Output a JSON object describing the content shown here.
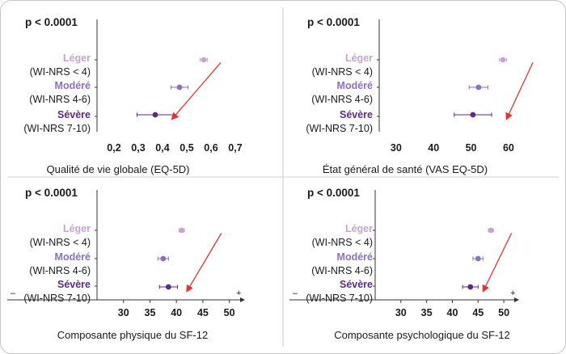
{
  "chart_data": [
    {
      "type": "scatter",
      "style": "forest-plot",
      "pvalue": "p < 0.0001",
      "xlabel": "Qualité de vie globale (EQ-5D)",
      "xlim": [
        0.13,
        0.71
      ],
      "ticks": [
        0.2,
        0.3,
        0.4,
        0.5,
        0.6,
        0.7
      ],
      "tick_labels": [
        "0,2",
        "0,3",
        "0,4",
        "0,5",
        "0,6",
        "0,7"
      ],
      "axis_style": "bare",
      "direction_markers": null,
      "arrow": {
        "from": [
          0.64,
          1.9
        ],
        "to": [
          0.44,
          -0.15
        ]
      },
      "points": [
        {
          "group": 0,
          "value": 0.57,
          "low": 0.555,
          "high": 0.585
        },
        {
          "group": 1,
          "value": 0.47,
          "low": 0.435,
          "high": 0.505
        },
        {
          "group": 2,
          "value": 0.37,
          "low": 0.295,
          "high": 0.445
        }
      ]
    },
    {
      "type": "scatter",
      "style": "forest-plot",
      "pvalue": "p < 0.0001",
      "xlabel": "État général de santé (VAS EQ-5D)",
      "xlim": [
        25.5,
        68
      ],
      "ticks": [
        30,
        40,
        50,
        60
      ],
      "tick_labels": [
        "30",
        "40",
        "50",
        "60"
      ],
      "axis_style": "bare",
      "direction_markers": null,
      "arrow": {
        "from": [
          66.5,
          1.9
        ],
        "to": [
          59.5,
          -0.15
        ]
      },
      "points": [
        {
          "group": 0,
          "value": 58.5,
          "low": 57.5,
          "high": 59.5
        },
        {
          "group": 1,
          "value": 52,
          "low": 49.5,
          "high": 54.5
        },
        {
          "group": 2,
          "value": 50.5,
          "low": 45.5,
          "high": 55.5
        }
      ]
    },
    {
      "type": "scatter",
      "style": "forest-plot",
      "pvalue": "p < 0.0001",
      "xlabel": "Composante physique du SF-12",
      "xlim": [
        25,
        52.5
      ],
      "ticks": [
        30,
        35,
        40,
        45,
        50
      ],
      "tick_labels": [
        "30",
        "35",
        "40",
        "45",
        "50"
      ],
      "axis_style": "arrow",
      "direction_markers": [
        "–",
        "+"
      ],
      "arrow": {
        "from": [
          48.5,
          1.9
        ],
        "to": [
          42.0,
          -0.15
        ]
      },
      "points": [
        {
          "group": 0,
          "value": 41,
          "low": 40.5,
          "high": 41.5
        },
        {
          "group": 1,
          "value": 37.5,
          "low": 36.5,
          "high": 38.5
        },
        {
          "group": 2,
          "value": 38.5,
          "low": 36.8,
          "high": 40.2
        }
      ]
    },
    {
      "type": "scatter",
      "style": "forest-plot",
      "pvalue": "p < 0.0001",
      "xlabel": "Composante psychologique du SF-12",
      "xlim": [
        25,
        52.5
      ],
      "ticks": [
        30,
        35,
        40,
        45,
        50
      ],
      "tick_labels": [
        "30",
        "35",
        "40",
        "45",
        "50"
      ],
      "axis_style": "arrow",
      "direction_markers": [
        "–",
        "+"
      ],
      "arrow": {
        "from": [
          51.5,
          1.9
        ],
        "to": [
          46.0,
          -0.15
        ]
      },
      "points": [
        {
          "group": 0,
          "value": 47.5,
          "low": 47.0,
          "high": 48.0
        },
        {
          "group": 1,
          "value": 45,
          "low": 44.0,
          "high": 46.0
        },
        {
          "group": 2,
          "value": 43.5,
          "low": 42.0,
          "high": 45.0
        }
      ]
    }
  ],
  "groups": [
    {
      "name": "Léger",
      "range": "(WI-NRS < 4)",
      "color": "#c9a3d0"
    },
    {
      "name": "Modéré",
      "range": "(WI-NRS 4-6)",
      "color": "#8b6fc0"
    },
    {
      "name": "Sévère",
      "range": "(WI-NRS 7-10)",
      "color": "#5b2a86"
    }
  ],
  "colors": {
    "arrow": "#e3322f",
    "text": "#1a1a1a",
    "axis": "#333333"
  }
}
